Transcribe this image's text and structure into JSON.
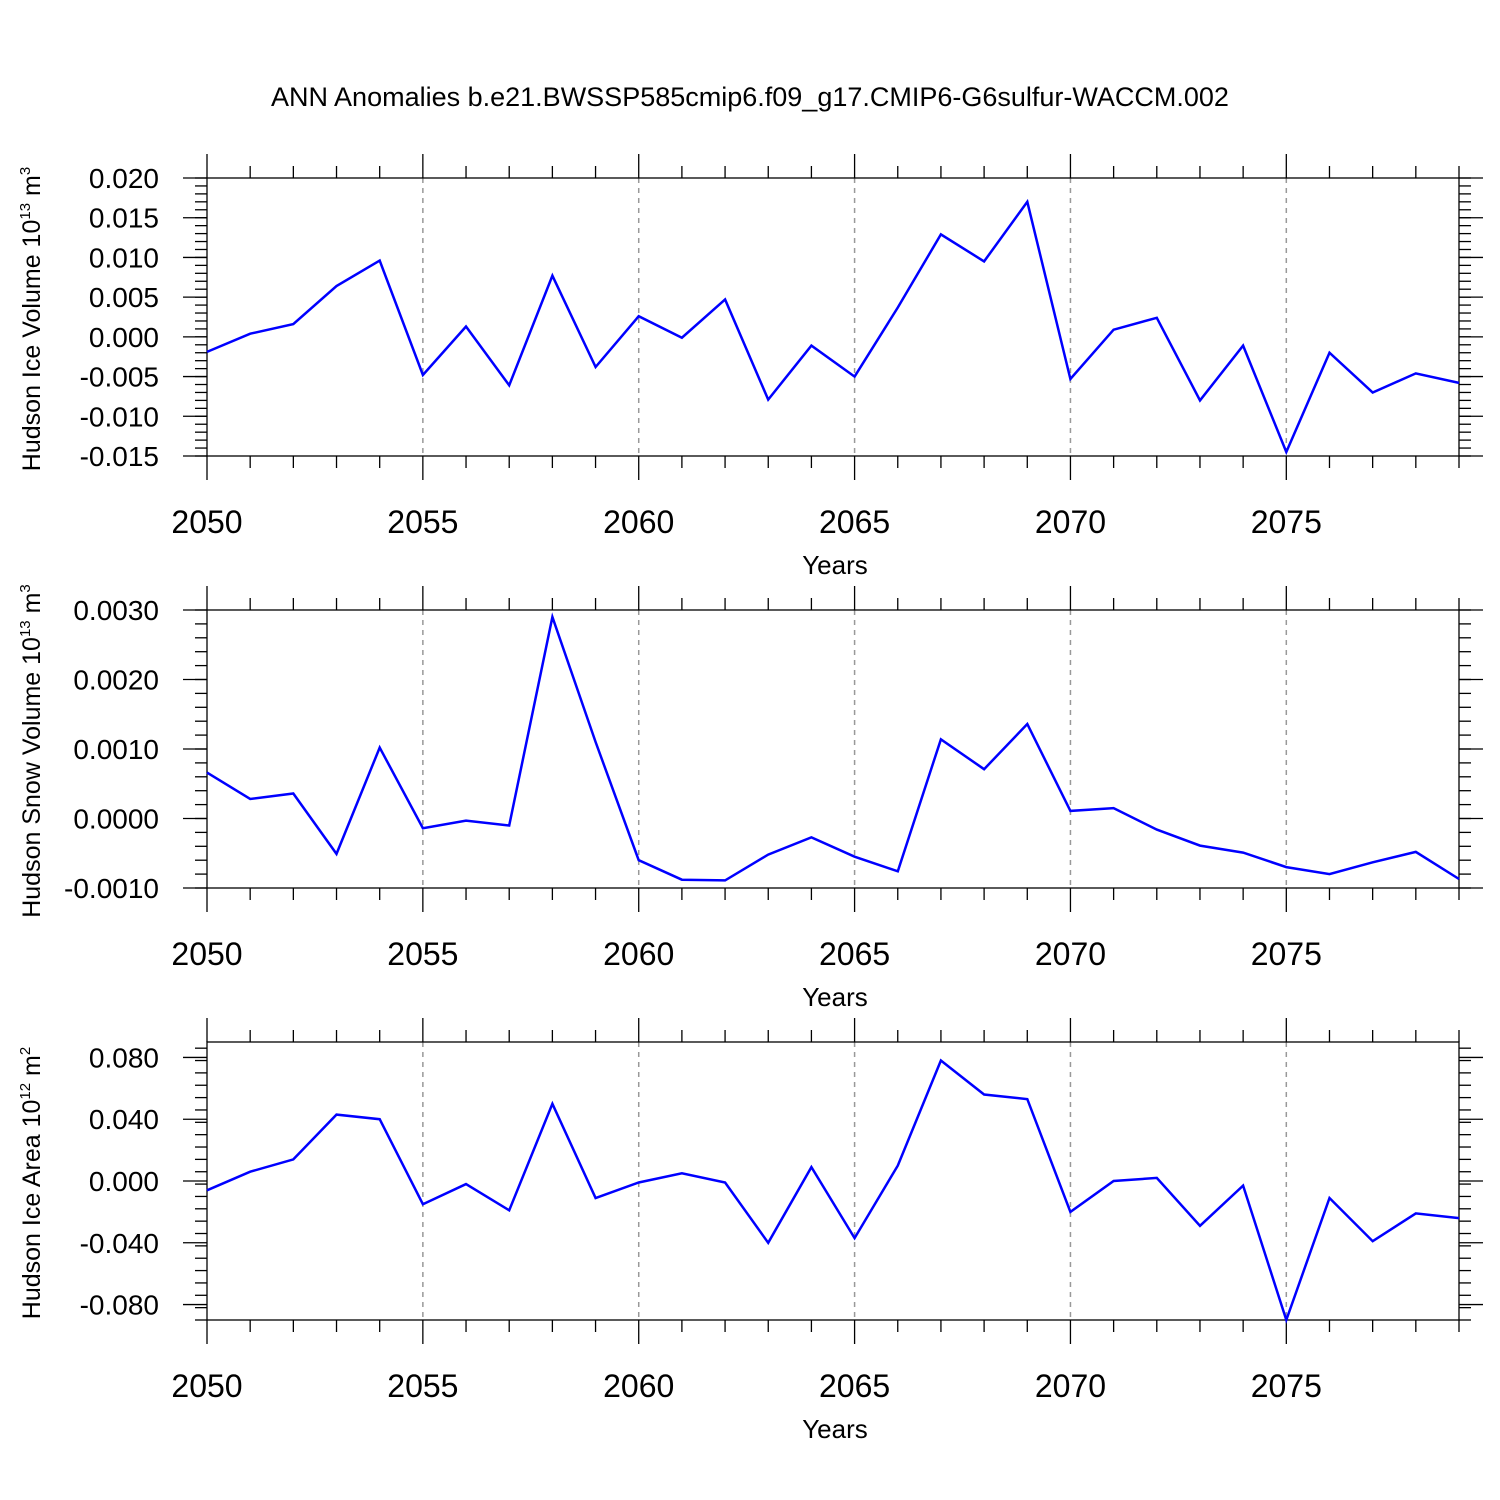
{
  "title": "ANN Anomalies b.e21.BWSSP585cmip6.f09_g17.CMIP6-G6sulfur-WACCM.002",
  "colors": {
    "line": "#0000ff",
    "grid": "#999999",
    "axis": "#000000"
  },
  "chart_data": [
    {
      "type": "line",
      "ylabel": {
        "text": "Hudson Ice Volume 10",
        "exponent": "13",
        "unit": " m",
        "unit_exponent": "3"
      },
      "xlabel": "Years",
      "xlim": [
        2050,
        2079
      ],
      "ylim": [
        -0.015,
        0.02
      ],
      "x_ticks": [
        "2050",
        "2055",
        "2060",
        "2065",
        "2070",
        "2075"
      ],
      "y_ticks": [
        "0.020",
        "0.015",
        "0.010",
        "0.005",
        "0.000",
        "-0.005",
        "-0.010",
        "-0.015"
      ],
      "y_tick_values": [
        0.02,
        0.015,
        0.01,
        0.005,
        0.0,
        -0.005,
        -0.01,
        -0.015
      ],
      "grid": "vertical dashed at major x ticks",
      "series": [
        {
          "x": [
            2050,
            2051,
            2052,
            2053,
            2054,
            2055,
            2056,
            2057,
            2058,
            2059,
            2060,
            2061,
            2062,
            2063,
            2064,
            2065,
            2066,
            2067,
            2068,
            2069,
            2070,
            2071,
            2072,
            2073,
            2074,
            2075,
            2076,
            2077,
            2078,
            2079
          ],
          "values": [
            -0.0019,
            0.0004,
            0.0016,
            0.0064,
            0.0096,
            -0.0048,
            0.0013,
            -0.0061,
            0.0077,
            -0.0038,
            0.0026,
            -0.0001,
            0.0047,
            -0.0079,
            -0.0011,
            -0.005,
            0.0037,
            0.0129,
            0.0095,
            0.017,
            -0.0053,
            0.0009,
            0.0024,
            -0.008,
            -0.0011,
            -0.0145,
            -0.002,
            -0.007,
            -0.0046,
            -0.0058
          ]
        }
      ]
    },
    {
      "type": "line",
      "ylabel": {
        "text": "Hudson Snow Volume 10",
        "exponent": "13",
        "unit": " m",
        "unit_exponent": "3"
      },
      "xlabel": "Years",
      "xlim": [
        2050,
        2079
      ],
      "ylim": [
        -0.001,
        0.003
      ],
      "x_ticks": [
        "2050",
        "2055",
        "2060",
        "2065",
        "2070",
        "2075"
      ],
      "y_ticks": [
        "0.0030",
        "0.0020",
        "0.0010",
        "0.0000",
        "-0.0010"
      ],
      "y_tick_values": [
        0.003,
        0.002,
        0.001,
        0.0,
        -0.001
      ],
      "grid": "vertical dashed at major x ticks",
      "series": [
        {
          "x": [
            2050,
            2051,
            2052,
            2053,
            2054,
            2055,
            2056,
            2057,
            2058,
            2059,
            2060,
            2061,
            2062,
            2063,
            2064,
            2065,
            2066,
            2067,
            2068,
            2069,
            2070,
            2071,
            2072,
            2073,
            2074,
            2075,
            2076,
            2077,
            2078,
            2079
          ],
          "values": [
            0.00066,
            0.00028,
            0.00036,
            -0.00051,
            0.00102,
            -0.00014,
            -3e-05,
            -0.0001,
            0.0029,
            0.0011,
            -0.0006,
            -0.00088,
            -0.00089,
            -0.00052,
            -0.00027,
            -0.00055,
            -0.00076,
            0.00114,
            0.00071,
            0.00136,
            0.00011,
            0.00015,
            -0.00016,
            -0.00039,
            -0.00049,
            -0.0007,
            -0.0008,
            -0.00063,
            -0.00048,
            -0.00087
          ]
        }
      ]
    },
    {
      "type": "line",
      "ylabel": {
        "text": "Hudson Ice Area 10",
        "exponent": "12",
        "unit": " m",
        "unit_exponent": "2"
      },
      "xlabel": "Years",
      "xlim": [
        2050,
        2079
      ],
      "ylim": [
        -0.09,
        0.09
      ],
      "x_ticks": [
        "2050",
        "2055",
        "2060",
        "2065",
        "2070",
        "2075"
      ],
      "y_ticks": [
        "0.080",
        "0.040",
        "0.000",
        "-0.040",
        "-0.080"
      ],
      "y_tick_values": [
        0.08,
        0.04,
        0.0,
        -0.04,
        -0.08
      ],
      "grid": "vertical dashed at major x ticks",
      "series": [
        {
          "x": [
            2050,
            2051,
            2052,
            2053,
            2054,
            2055,
            2056,
            2057,
            2058,
            2059,
            2060,
            2061,
            2062,
            2063,
            2064,
            2065,
            2066,
            2067,
            2068,
            2069,
            2070,
            2071,
            2072,
            2073,
            2074,
            2075,
            2076,
            2077,
            2078,
            2079
          ],
          "values": [
            -0.006,
            0.006,
            0.014,
            0.043,
            0.04,
            -0.015,
            -0.002,
            -0.019,
            0.05,
            -0.011,
            -0.001,
            0.005,
            -0.001,
            -0.04,
            0.009,
            -0.037,
            0.01,
            0.078,
            0.056,
            0.053,
            -0.02,
            0.0,
            0.002,
            -0.029,
            -0.003,
            -0.09,
            -0.011,
            -0.039,
            -0.021,
            -0.024
          ]
        }
      ]
    }
  ]
}
